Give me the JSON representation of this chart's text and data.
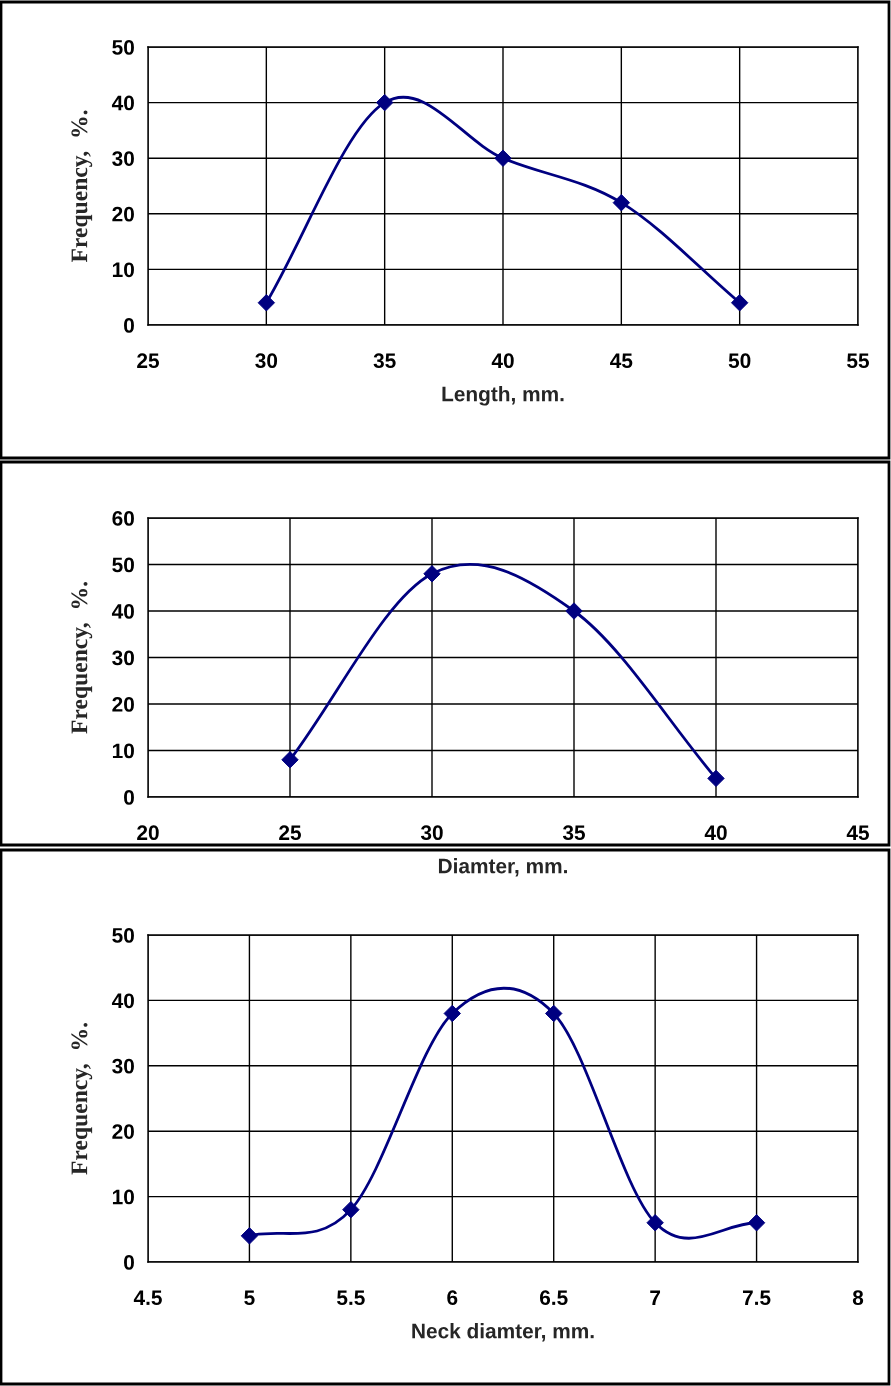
{
  "chart_data": [
    {
      "type": "line",
      "xlabel": "Length, mm.",
      "ylabel": "Frequency,  %.",
      "x": [
        30,
        35,
        40,
        45,
        50
      ],
      "series": [
        {
          "color": "#000080",
          "values": [
            4,
            40,
            30,
            22,
            4
          ]
        }
      ],
      "xlim": [
        25,
        55
      ],
      "xticks": [
        25,
        30,
        35,
        40,
        45,
        50,
        55
      ],
      "ylim": [
        0,
        50
      ],
      "yticks": [
        0,
        10,
        20,
        30,
        40,
        50
      ],
      "grid": true,
      "marker": "diamond",
      "line_style": "solid"
    },
    {
      "type": "line",
      "xlabel": "Diamter, mm.",
      "ylabel": "Frequency,  %.",
      "x": [
        25,
        30,
        35,
        40
      ],
      "series": [
        {
          "color": "#000080",
          "values": [
            8,
            48,
            40,
            4
          ]
        }
      ],
      "xlim": [
        20,
        45
      ],
      "xticks": [
        20,
        25,
        30,
        35,
        40,
        45
      ],
      "ylim": [
        0,
        60
      ],
      "yticks": [
        0,
        10,
        20,
        30,
        40,
        50,
        60
      ],
      "grid": true,
      "marker": "diamond",
      "line_style": "solid"
    },
    {
      "type": "line",
      "xlabel": "Neck diamter, mm.",
      "ylabel": "Frequency,  %.",
      "x": [
        5,
        5.5,
        6,
        6.5,
        7,
        7.5
      ],
      "series": [
        {
          "color": "#000080",
          "values": [
            4,
            8,
            38,
            38,
            6,
            6
          ]
        }
      ],
      "xlim": [
        4.5,
        8
      ],
      "xticks": [
        4.5,
        5,
        5.5,
        6,
        6.5,
        7,
        7.5,
        8
      ],
      "ylim": [
        0,
        50
      ],
      "yticks": [
        0,
        10,
        20,
        30,
        40,
        50
      ],
      "grid": true,
      "marker": "diamond",
      "line_style": "solid"
    }
  ]
}
